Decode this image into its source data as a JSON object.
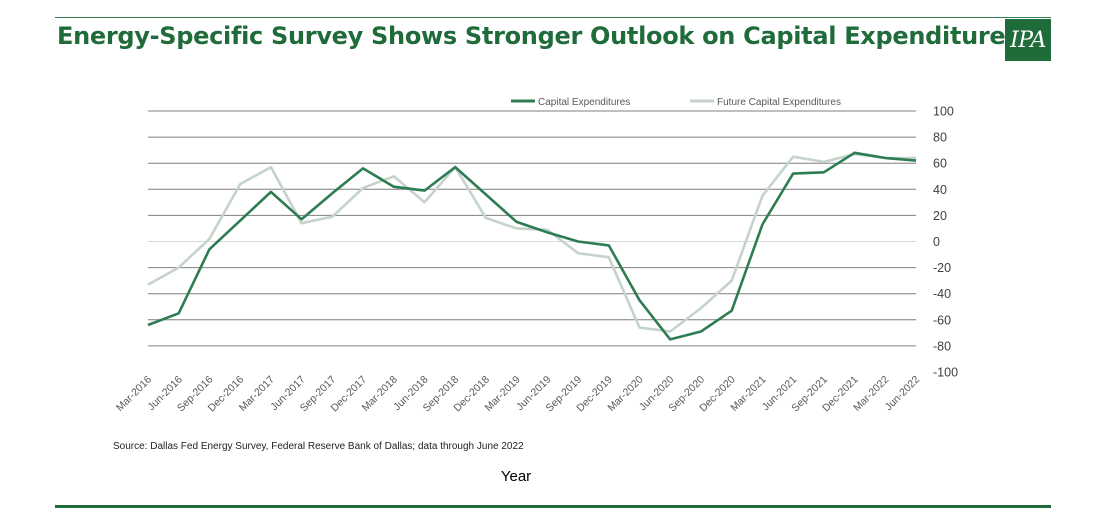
{
  "header": {
    "title": "Energy-Specific Survey Shows Stronger Outlook on Capital Expenditures",
    "logo_text": "IPA"
  },
  "footer": {
    "source": "Source: Dallas Fed Energy Survey, Federal Reserve Bank of Dallas; data through June 2022"
  },
  "colors": {
    "brand": "#1f6b3a",
    "capex": "#2e7d52",
    "future": "#c5d3cc",
    "grid": "#7f7f7f"
  },
  "chart_data": {
    "type": "line",
    "title": "",
    "xlabel": "Year",
    "ylabel": "",
    "ylim": [
      -100,
      100
    ],
    "yticks": [
      100,
      80,
      60,
      40,
      20,
      0,
      -20,
      -40,
      -60,
      -80,
      -100
    ],
    "grid": true,
    "legend_position": "top-center",
    "categories": [
      "Mar-2016",
      "Jun-2016",
      "Sep-2016",
      "Dec-2016",
      "Mar-2017",
      "Jun-2017",
      "Sep-2017",
      "Dec-2017",
      "Mar-2018",
      "Jun-2018",
      "Sep-2018",
      "Dec-2018",
      "Mar-2019",
      "Jun-2019",
      "Sep-2019",
      "Dec-2019",
      "Mar-2020",
      "Jun-2020",
      "Sep-2020",
      "Dec-2020",
      "Mar-2021",
      "Jun-2021",
      "Sep-2021",
      "Dec-2021",
      "Mar-2022",
      "Jun-2022"
    ],
    "series": [
      {
        "name": "Capital Expenditures",
        "values": [
          -64,
          -55,
          -6,
          16,
          38,
          17,
          37,
          56,
          42,
          39,
          57,
          36,
          15,
          7,
          0,
          -3,
          -45,
          -75,
          -69,
          -53,
          13,
          52,
          53,
          68,
          64,
          62
        ]
      },
      {
        "name": "Future Capital Expenditures",
        "values": [
          -33,
          -20,
          2,
          44,
          57,
          14,
          19,
          41,
          50,
          30,
          57,
          18,
          10,
          9,
          -9,
          -12,
          -66,
          -69,
          -51,
          -30,
          35,
          65,
          61,
          67,
          64,
          64
        ]
      }
    ]
  }
}
